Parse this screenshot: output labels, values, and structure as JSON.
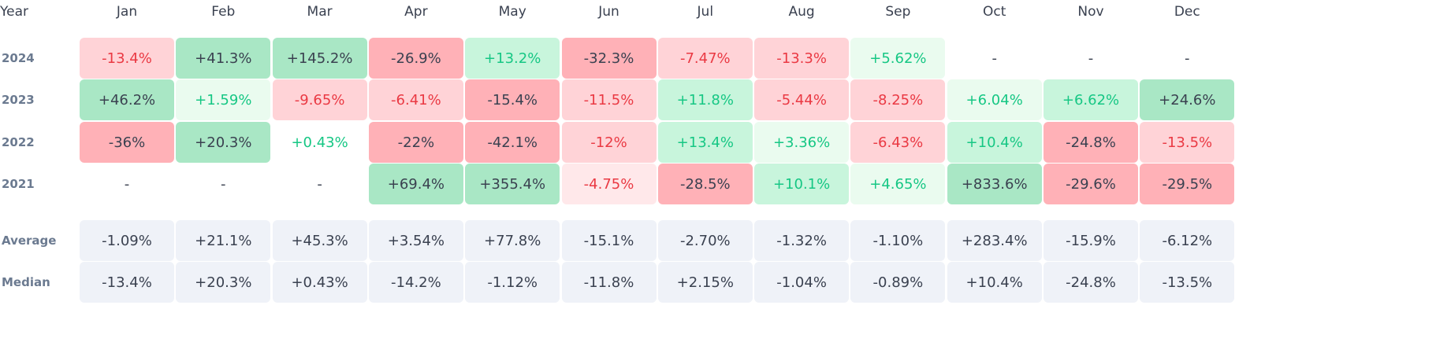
{
  "chart_data": {
    "type": "heatmap",
    "corner_label": "Year",
    "months": [
      "Jan",
      "Feb",
      "Mar",
      "Apr",
      "May",
      "Jun",
      "Jul",
      "Aug",
      "Sep",
      "Oct",
      "Nov",
      "Dec"
    ],
    "rows": [
      {
        "label": "2024",
        "values": [
          "-13.4%",
          "+41.3%",
          "+145.2%",
          "-26.9%",
          "+13.2%",
          "-32.3%",
          "-7.47%",
          "-13.3%",
          "+5.62%",
          "-",
          "-",
          "-"
        ]
      },
      {
        "label": "2023",
        "values": [
          "+46.2%",
          "+1.59%",
          "-9.65%",
          "-6.41%",
          "-15.4%",
          "-11.5%",
          "+11.8%",
          "-5.44%",
          "-8.25%",
          "+6.04%",
          "+6.62%",
          "+24.6%"
        ]
      },
      {
        "label": "2022",
        "values": [
          "-36%",
          "+20.3%",
          "+0.43%",
          "-22%",
          "-42.1%",
          "-12%",
          "+13.4%",
          "+3.36%",
          "-6.43%",
          "+10.4%",
          "-24.8%",
          "-13.5%"
        ]
      },
      {
        "label": "2021",
        "values": [
          "-",
          "-",
          "-",
          "+69.4%",
          "+355.4%",
          "-4.75%",
          "-28.5%",
          "+10.1%",
          "+4.65%",
          "+833.6%",
          "-29.6%",
          "-29.5%"
        ]
      }
    ],
    "summary_rows": [
      {
        "label": "Average",
        "values": [
          "-1.09%",
          "+21.1%",
          "+45.3%",
          "+3.54%",
          "+77.8%",
          "-15.1%",
          "-2.70%",
          "-1.32%",
          "-1.10%",
          "+283.4%",
          "-15.9%",
          "-6.12%"
        ]
      },
      {
        "label": "Median",
        "values": [
          "-13.4%",
          "+20.3%",
          "+0.43%",
          "-14.2%",
          "-1.12%",
          "-11.8%",
          "+2.15%",
          "-1.04%",
          "-0.89%",
          "+10.4%",
          "-24.8%",
          "-13.5%"
        ]
      }
    ],
    "colors": {
      "pos_text": "#16c784",
      "neg_text": "#ea3943",
      "neutral_text": "#3a4150",
      "pos_light": "#eafbef",
      "pos_mid": "#c8f5dc",
      "pos_strong": "#a9e7c5",
      "neg_light": "#ffe8ea",
      "neg_mid": "#ffd3d7",
      "neg_strong": "#ffb1b7",
      "summary_bg": "#eff2f8"
    }
  }
}
